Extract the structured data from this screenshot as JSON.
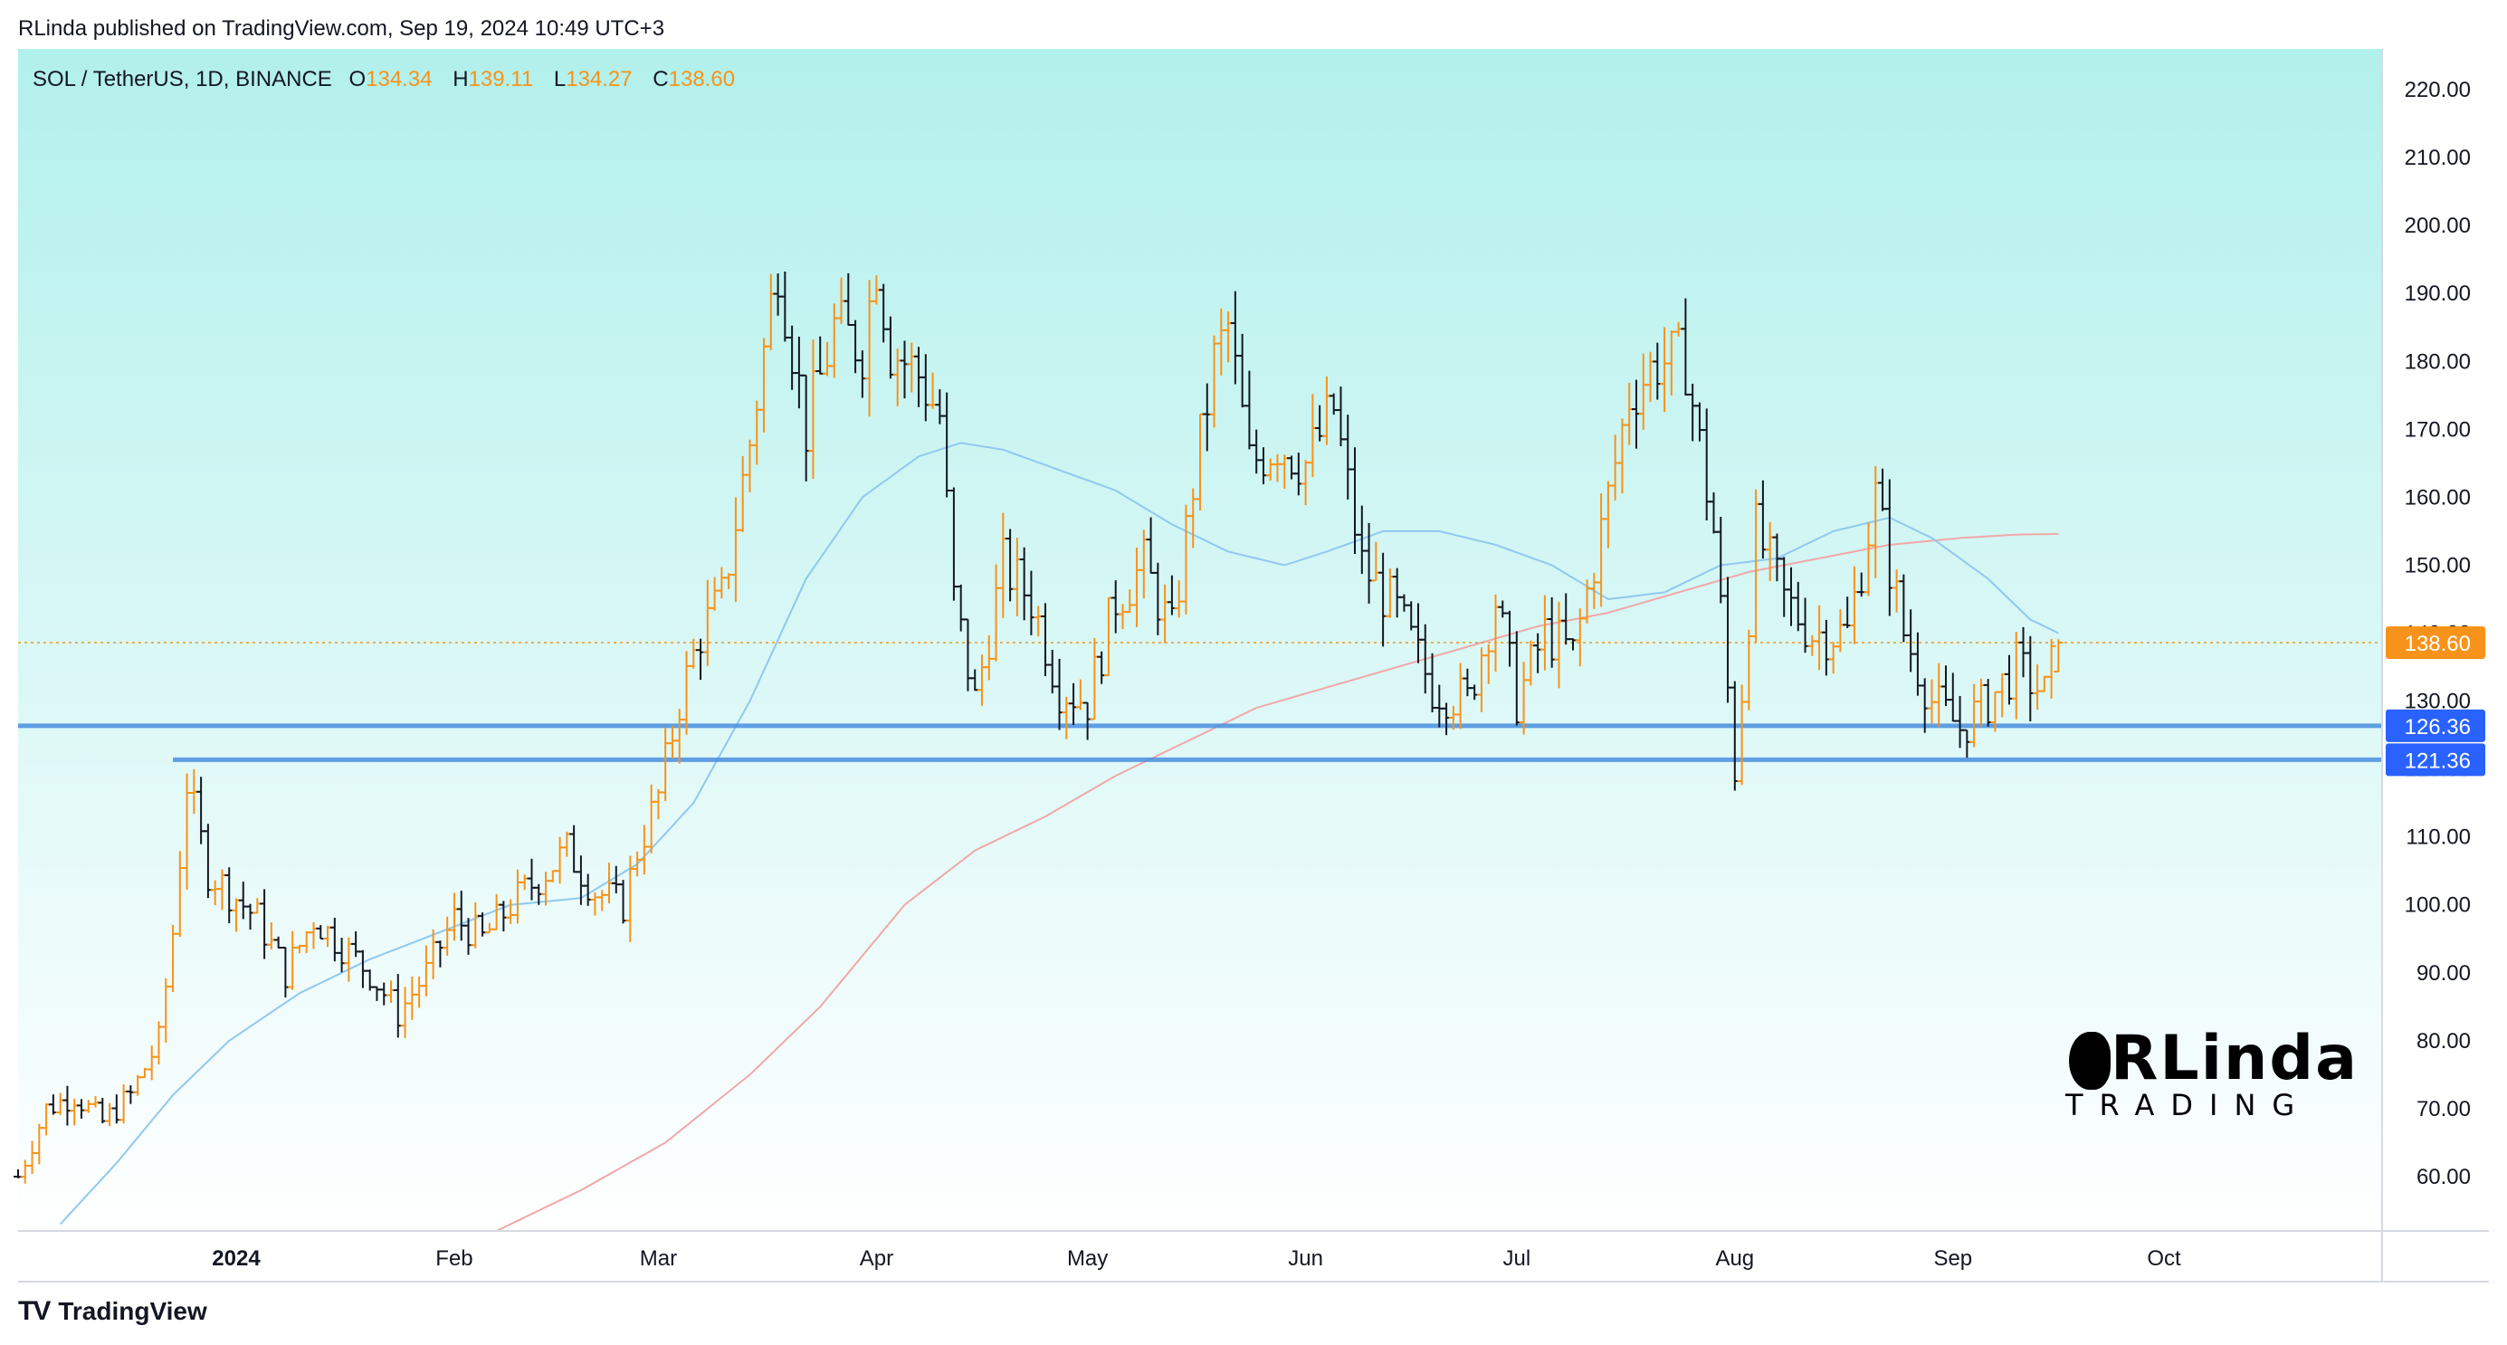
{
  "header": {
    "published_text": "RLinda published on TradingView.com, Sep 19, 2024 10:49 UTC+3"
  },
  "symbol_info": {
    "symbol": "SOL / TetherUS, 1D, BINANCE",
    "open_label": "O",
    "open": "134.34",
    "high_label": "H",
    "high": "139.11",
    "low_label": "L",
    "low": "134.27",
    "close_label": "C",
    "close": "138.60"
  },
  "footer": {
    "brand": "TradingView",
    "logo_text": "TV"
  },
  "watermark": {
    "title": "RLinda",
    "subtitle": "TRADING"
  },
  "colors": {
    "bg_top": "#b2f0ec",
    "bg_bottom": "#ffffff",
    "up_bar": "#f7931a",
    "down_bar": "#131722",
    "ma50": "#90c8f0",
    "ma200": "#f0a8a8",
    "level_line": "#4a8fe0",
    "last_price": "#f7931a",
    "level_tag": "#2962ff"
  },
  "chart_data": {
    "type": "ohlc",
    "title": "SOL / TetherUS, 1D, BINANCE",
    "ylim": [
      52,
      226
    ],
    "y_ticks": [
      60,
      70,
      80,
      90,
      100,
      110,
      120,
      130,
      140,
      150,
      160,
      170,
      180,
      190,
      200,
      210,
      220
    ],
    "y_tick_labels": [
      "60.00",
      "70.00",
      "80.00",
      "90.00",
      "100.00",
      "110.00",
      "120.00",
      "130.00",
      "140.00",
      "150.00",
      "160.00",
      "170.00",
      "180.00",
      "190.00",
      "200.00",
      "210.00",
      "220.00"
    ],
    "x_ticks": [
      {
        "day": 31,
        "label": "2024"
      },
      {
        "day": 62,
        "label": "Feb"
      },
      {
        "day": 91,
        "label": "Mar"
      },
      {
        "day": 122,
        "label": "Apr"
      },
      {
        "day": 152,
        "label": "May"
      },
      {
        "day": 183,
        "label": "Jun"
      },
      {
        "day": 213,
        "label": "Jul"
      },
      {
        "day": 244,
        "label": "Aug"
      },
      {
        "day": 275,
        "label": "Sep"
      },
      {
        "day": 305,
        "label": "Oct"
      }
    ],
    "x_range_days": [
      0,
      336
    ],
    "series_anchors": [
      [
        0,
        60
      ],
      [
        4,
        70
      ],
      [
        8,
        72
      ],
      [
        12,
        68
      ],
      [
        16,
        72
      ],
      [
        20,
        80
      ],
      [
        22,
        96
      ],
      [
        24,
        118
      ],
      [
        27,
        105
      ],
      [
        30,
        102
      ],
      [
        34,
        98
      ],
      [
        38,
        90
      ],
      [
        42,
        98
      ],
      [
        46,
        94
      ],
      [
        50,
        90
      ],
      [
        54,
        84
      ],
      [
        58,
        90
      ],
      [
        62,
        98
      ],
      [
        66,
        95
      ],
      [
        70,
        100
      ],
      [
        74,
        104
      ],
      [
        78,
        108
      ],
      [
        82,
        102
      ],
      [
        86,
        100
      ],
      [
        88,
        108
      ],
      [
        91,
        116
      ],
      [
        94,
        130
      ],
      [
        97,
        140
      ],
      [
        100,
        145
      ],
      [
        104,
        168
      ],
      [
        108,
        195
      ],
      [
        112,
        170
      ],
      [
        116,
        185
      ],
      [
        120,
        182
      ],
      [
        122,
        195
      ],
      [
        124,
        182
      ],
      [
        128,
        178
      ],
      [
        131,
        172
      ],
      [
        133,
        145
      ],
      [
        136,
        130
      ],
      [
        140,
        150
      ],
      [
        144,
        145
      ],
      [
        148,
        132
      ],
      [
        152,
        130
      ],
      [
        156,
        145
      ],
      [
        160,
        150
      ],
      [
        164,
        140
      ],
      [
        167,
        162
      ],
      [
        170,
        180
      ],
      [
        172,
        185
      ],
      [
        175,
        165
      ],
      [
        179,
        168
      ],
      [
        183,
        165
      ],
      [
        187,
        173
      ],
      [
        191,
        150
      ],
      [
        196,
        143
      ],
      [
        201,
        132
      ],
      [
        206,
        130
      ],
      [
        210,
        145
      ],
      [
        213,
        130
      ],
      [
        217,
        140
      ],
      [
        221,
        137
      ],
      [
        225,
        155
      ],
      [
        229,
        175
      ],
      [
        233,
        180
      ],
      [
        237,
        180
      ],
      [
        241,
        155
      ],
      [
        244,
        120
      ],
      [
        247,
        155
      ],
      [
        251,
        145
      ],
      [
        255,
        140
      ],
      [
        260,
        140
      ],
      [
        264,
        160
      ],
      [
        268,
        140
      ],
      [
        272,
        130
      ],
      [
        276,
        126
      ],
      [
        280,
        130
      ],
      [
        284,
        135
      ],
      [
        288,
        131
      ],
      [
        290,
        138.6
      ]
    ],
    "last_bar": {
      "open": 134.34,
      "high": 139.11,
      "low": 134.27,
      "close": 138.6
    },
    "ma50_anchors": [
      [
        6,
        53
      ],
      [
        14,
        62
      ],
      [
        22,
        72
      ],
      [
        30,
        80
      ],
      [
        40,
        87
      ],
      [
        50,
        92
      ],
      [
        60,
        96
      ],
      [
        70,
        100
      ],
      [
        80,
        101
      ],
      [
        88,
        106
      ],
      [
        96,
        115
      ],
      [
        104,
        130
      ],
      [
        112,
        148
      ],
      [
        120,
        160
      ],
      [
        128,
        166
      ],
      [
        134,
        168
      ],
      [
        140,
        167
      ],
      [
        148,
        164
      ],
      [
        156,
        161
      ],
      [
        164,
        156
      ],
      [
        172,
        152
      ],
      [
        180,
        150
      ],
      [
        186,
        152
      ],
      [
        194,
        155
      ],
      [
        202,
        155
      ],
      [
        210,
        153
      ],
      [
        218,
        150
      ],
      [
        226,
        145
      ],
      [
        234,
        146
      ],
      [
        242,
        150
      ],
      [
        250,
        151
      ],
      [
        258,
        155
      ],
      [
        266,
        157
      ],
      [
        272,
        154
      ],
      [
        280,
        148
      ],
      [
        286,
        142
      ],
      [
        290,
        140
      ]
    ],
    "ma200_anchors": [
      [
        68,
        52
      ],
      [
        80,
        58
      ],
      [
        92,
        65
      ],
      [
        104,
        75
      ],
      [
        114,
        85
      ],
      [
        126,
        100
      ],
      [
        136,
        108
      ],
      [
        146,
        113
      ],
      [
        156,
        119
      ],
      [
        166,
        124
      ],
      [
        176,
        129
      ],
      [
        186,
        132
      ],
      [
        196,
        135
      ],
      [
        206,
        138
      ],
      [
        216,
        141
      ],
      [
        226,
        143
      ],
      [
        236,
        146
      ],
      [
        246,
        149
      ],
      [
        256,
        151
      ],
      [
        266,
        153
      ],
      [
        276,
        154
      ],
      [
        284,
        154.5
      ],
      [
        290,
        154.6
      ]
    ],
    "levels": [
      {
        "value": 126.36,
        "label": "126.36",
        "from_day": 0
      },
      {
        "value": 121.36,
        "label": "121.36",
        "from_day": 22
      }
    ],
    "last_price": {
      "value": 138.6,
      "label": "138.60"
    },
    "grid": false,
    "legend": "none"
  }
}
